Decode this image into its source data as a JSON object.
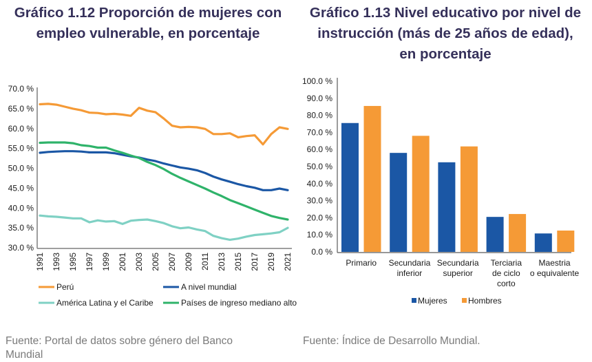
{
  "left": {
    "title": "Gráfico 1.12 Proporción de mujeres con empleo vulnerable, en porcentaje",
    "source": "Fuente: Portal de datos sobre género del Banco Mundial"
  },
  "right": {
    "title": "Gráfico 1.13 Nivel educativo por nivel de instrucción (más de 25 años de edad), en porcentaje",
    "source": "Fuente: Índice de Desarrollo Mundial."
  },
  "chart_data": [
    {
      "type": "line",
      "title": "Gráfico 1.12 Proporción de mujeres con empleo vulnerable, en porcentaje",
      "xlabel": "",
      "ylabel": "",
      "ylim": [
        30,
        70
      ],
      "yticks": [
        "70.0 %",
        "65.0 %",
        "60.0 %",
        "55.0 %",
        "50.0 %",
        "45.0 %",
        "40.0 %",
        "35.0 %",
        "30.0 %"
      ],
      "ytick_values": [
        70,
        65,
        60,
        55,
        50,
        45,
        40,
        35,
        30
      ],
      "x": [
        1991,
        1992,
        1993,
        1994,
        1995,
        1996,
        1997,
        1998,
        1999,
        2000,
        2001,
        2002,
        2003,
        2004,
        2005,
        2006,
        2007,
        2008,
        2009,
        2010,
        2011,
        2012,
        2013,
        2014,
        2015,
        2016,
        2017,
        2018,
        2019,
        2020,
        2021
      ],
      "xtick_labels": [
        "1991",
        "1993",
        "1995",
        "1997",
        "1999",
        "2001",
        "2003",
        "2005",
        "2007",
        "2009",
        "2011",
        "2013",
        "2015",
        "2017",
        "2019",
        "2021"
      ],
      "grid": false,
      "legend_position": "bottom",
      "series": [
        {
          "name": "Perú",
          "color": "#f59a36",
          "values": [
            66.1,
            66.2,
            66.0,
            65.5,
            65.0,
            64.6,
            64.0,
            63.9,
            63.6,
            63.7,
            63.5,
            63.2,
            65.2,
            64.5,
            64.1,
            62.5,
            60.7,
            60.3,
            60.4,
            60.3,
            59.9,
            58.6,
            58.6,
            58.8,
            57.8,
            58.1,
            58.3,
            56.0,
            58.6,
            60.3,
            59.9
          ]
        },
        {
          "name": "A nivel mundial",
          "color": "#1b57a5",
          "values": [
            53.9,
            54.1,
            54.2,
            54.3,
            54.3,
            54.2,
            54.0,
            54.0,
            54.0,
            53.8,
            53.4,
            53.0,
            52.7,
            52.2,
            51.8,
            51.2,
            50.7,
            50.2,
            49.9,
            49.5,
            48.8,
            47.9,
            47.2,
            46.6,
            46.0,
            45.5,
            45.1,
            44.5,
            44.5,
            44.9,
            44.5
          ]
        },
        {
          "name": "América Latina y el Caribe",
          "color": "#7fd1c4",
          "values": [
            38.1,
            37.9,
            37.8,
            37.6,
            37.4,
            37.4,
            36.4,
            36.9,
            36.6,
            36.7,
            36.0,
            36.8,
            37.0,
            37.1,
            36.7,
            36.2,
            35.4,
            34.9,
            35.1,
            34.6,
            34.2,
            33.0,
            32.4,
            32.0,
            32.3,
            32.8,
            33.2,
            33.4,
            33.6,
            33.9,
            35.0
          ]
        },
        {
          "name": "Países de ingreso mediano alto",
          "color": "#2fb36a",
          "values": [
            56.4,
            56.5,
            56.5,
            56.5,
            56.3,
            55.8,
            55.6,
            55.2,
            55.2,
            54.5,
            53.9,
            53.2,
            52.6,
            51.6,
            50.8,
            49.8,
            48.6,
            47.6,
            46.7,
            45.8,
            44.9,
            43.9,
            43.0,
            42.0,
            41.2,
            40.4,
            39.6,
            38.8,
            38.0,
            37.5,
            37.1
          ]
        }
      ]
    },
    {
      "type": "bar",
      "title": "Gráfico 1.13 Nivel educativo por nivel de instrucción (más de 25 años de edad), en porcentaje",
      "xlabel": "",
      "ylabel": "",
      "ylim": [
        0,
        100
      ],
      "yticks": [
        "100.0 %",
        "90.0 %",
        "80.0 %",
        "70.0 %",
        "60.0 %",
        "50.0 %",
        "40.0 %",
        "30.0 %",
        "20.0 %",
        "10.0 %",
        "0.0 %"
      ],
      "ytick_values": [
        100,
        90,
        80,
        70,
        60,
        50,
        40,
        30,
        20,
        10,
        0
      ],
      "categories": [
        [
          "Primario"
        ],
        [
          "Secundaria",
          "inferior"
        ],
        [
          "Secundaria",
          "superior"
        ],
        [
          "Terciaria",
          "de ciclo",
          "corto"
        ],
        [
          "Maestria",
          "o equivalente"
        ]
      ],
      "grid": false,
      "legend_position": "bottom",
      "series": [
        {
          "name": "Mujeres",
          "color": "#1b57a5",
          "values": [
            75.5,
            58.0,
            52.5,
            20.5,
            10.8
          ]
        },
        {
          "name": "Hombres",
          "color": "#f59a36",
          "values": [
            85.5,
            68.0,
            61.8,
            22.2,
            12.5
          ]
        }
      ]
    }
  ]
}
